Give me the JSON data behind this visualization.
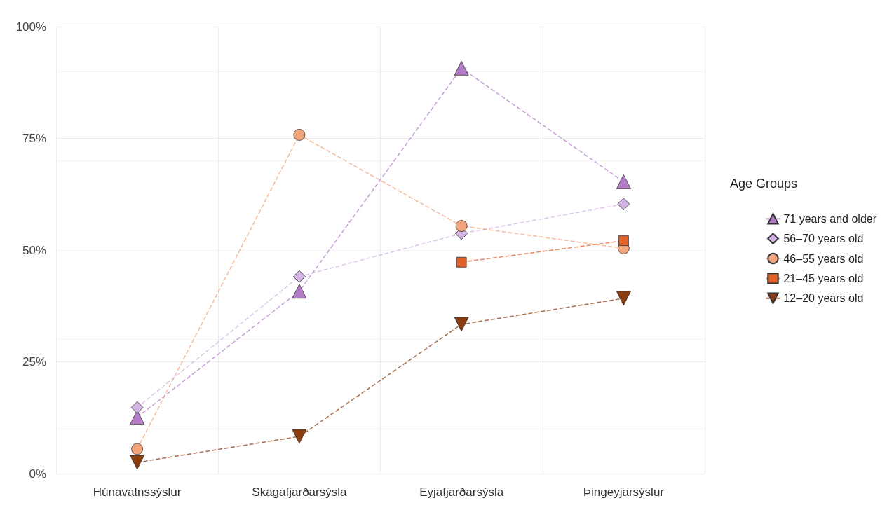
{
  "chart_data": {
    "type": "line",
    "legend_title": "Age Groups",
    "legend": "right",
    "grid": true,
    "line_style": "dashed",
    "categories": [
      "Húnavatnssýslur",
      "Skagafjarðarsýsla",
      "Eyjafjarðarsýsla",
      "Þingeyjarsýslur"
    ],
    "ylim": [
      0,
      100
    ],
    "yticks": [
      {
        "value": 0,
        "label": "0%"
      },
      {
        "value": 25,
        "label": "25%"
      },
      {
        "value": 50,
        "label": "50%"
      },
      {
        "value": 75,
        "label": "75%"
      },
      {
        "value": 100,
        "label": "100%"
      }
    ],
    "series": [
      {
        "name": "71 years and older",
        "color": "#b47cc8",
        "marker": "triangle",
        "values": [
          12.6,
          40.8,
          90.7,
          65.3
        ]
      },
      {
        "name": "56–70 years old",
        "color": "#d3b3e3",
        "marker": "diamond",
        "values": [
          14.8,
          44.1,
          53.7,
          60.3
        ]
      },
      {
        "name": "46–55 years old",
        "color": "#f2a57c",
        "marker": "circle",
        "values": [
          5.5,
          75.8,
          55.4,
          50.4
        ]
      },
      {
        "name": "21–45 years old",
        "color": "#e0622a",
        "marker": "square",
        "values": [
          null,
          null,
          47.3,
          52.1
        ]
      },
      {
        "name": "12–20 years old",
        "color": "#8c3d10",
        "marker": "triangle-down",
        "values": [
          2.5,
          8.3,
          33.4,
          39.2
        ]
      }
    ]
  }
}
